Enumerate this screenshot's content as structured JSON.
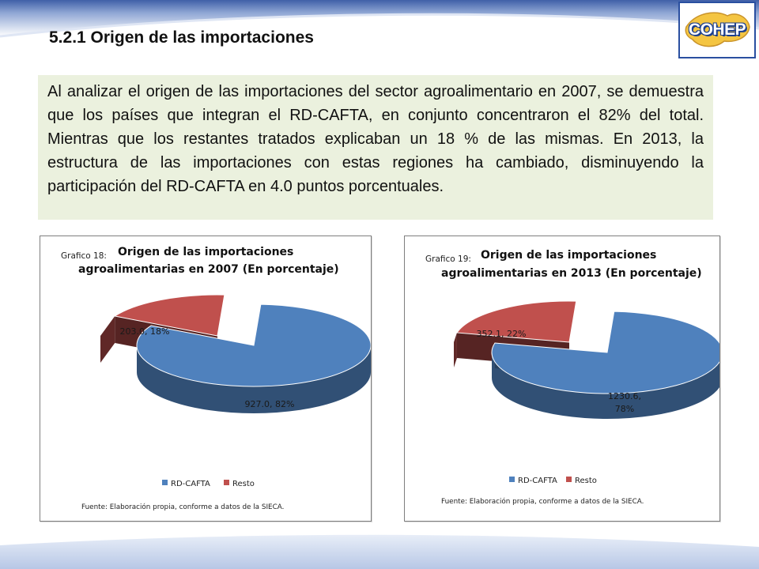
{
  "slide": {
    "title": "5.2.1 Origen de las importaciones",
    "summary": "Al analizar el origen de las importaciones del sector agroalimentario en 2007, se demuestra que los países que integran el RD-CAFTA, en conjunto concentraron el 82% del total. Mientras que los restantes tratados explicaban un 18 % de las mismas. En 2013, la estructura de las importaciones con estas regiones ha cambiado, disminuyendo la participación del RD-CAFTA en 4.0 puntos porcentuales."
  },
  "logo": {
    "text": "COHEP"
  },
  "colors": {
    "rd_cafta": "#4f81bd",
    "resto": "#c0504d",
    "summary_bg": "#ebf1de",
    "band": "#b7c7e6"
  },
  "chart_data": [
    {
      "type": "pie",
      "chart_label": "Grafico 18:",
      "title_line1": "Origen de las importaciones",
      "title_line2": "agroalimentarias en 2007 (En porcentaje)",
      "categories": [
        "RD-CAFTA",
        "Resto"
      ],
      "values": [
        927.0,
        203.0
      ],
      "percentages": [
        82,
        18
      ],
      "data_labels": [
        "927.0, 82%",
        "203.0, 18%"
      ],
      "legend": "bottom",
      "source": "Fuente: Elaboración propia, conforme a datos de la SIECA."
    },
    {
      "type": "pie",
      "chart_label": "Grafico 19:",
      "title_line1": "Origen de las importaciones",
      "title_line2": "agroalimentarias en 2013 (En porcentaje)",
      "categories": [
        "RD-CAFTA",
        "Resto"
      ],
      "values": [
        1230.6,
        352.1
      ],
      "percentages": [
        78,
        22
      ],
      "data_labels": [
        "1230.6, 78%",
        "352.1, 22%"
      ],
      "legend": "bottom",
      "source": "Fuente: Elaboración propia, conforme a datos de la SIECA."
    }
  ]
}
